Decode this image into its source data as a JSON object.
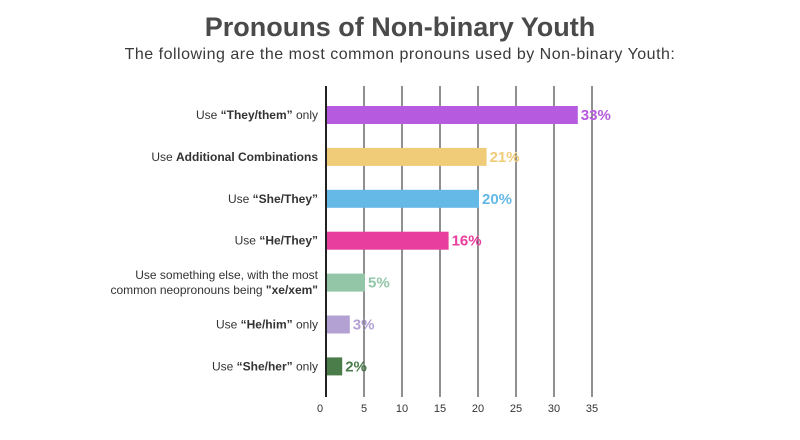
{
  "title": "Pronouns of Non-binary Youth",
  "subtitle": "The following are the most common pronouns used by Non-binary Youth:",
  "chart_data": {
    "type": "bar",
    "orientation": "horizontal",
    "title": "Pronouns of Non-binary Youth",
    "subtitle": "The following are the most common pronouns used by Non-binary Youth:",
    "categories": [
      "Use “They/them” only",
      "Use Additional Combinations",
      "Use “She/They”",
      "Use “He/They”",
      "Use something else, with the most common neopronouns being \"xe/xem\"",
      "Use “He/him” only",
      "Use “She/her” only"
    ],
    "category_text": [
      [
        [
          {
            "t": "Use ",
            "b": false
          },
          {
            "t": "“They/them”",
            "b": true
          },
          {
            "t": " only",
            "b": false
          }
        ]
      ],
      [
        [
          {
            "t": "Use ",
            "b": false
          },
          {
            "t": "Additional Combinations",
            "b": true
          }
        ]
      ],
      [
        [
          {
            "t": "Use ",
            "b": false
          },
          {
            "t": "“She/They”",
            "b": true
          }
        ]
      ],
      [
        [
          {
            "t": "Use ",
            "b": false
          },
          {
            "t": "“He/They”",
            "b": true
          }
        ]
      ],
      [
        [
          {
            "t": "Use something else, with the most",
            "b": false
          }
        ],
        [
          {
            "t": "common neopronouns being ",
            "b": false
          },
          {
            "t": "\"xe/xem\"",
            "b": true
          }
        ]
      ],
      [
        [
          {
            "t": "Use ",
            "b": false
          },
          {
            "t": "“He/him”",
            "b": true
          },
          {
            "t": " only",
            "b": false
          }
        ]
      ],
      [
        [
          {
            "t": "Use ",
            "b": false
          },
          {
            "t": "“She/her”",
            "b": true
          },
          {
            "t": " only",
            "b": false
          }
        ]
      ]
    ],
    "values": [
      33,
      21,
      20,
      16,
      5,
      3,
      2
    ],
    "value_labels": [
      "33%",
      "21%",
      "20%",
      "16%",
      "5%",
      "3%",
      "2%"
    ],
    "colors": [
      "#b65ae0",
      "#f0cc78",
      "#65b9e6",
      "#e83e9d",
      "#92c6a7",
      "#b3a1d3",
      "#4b7d4b"
    ],
    "xlim": [
      0,
      35
    ],
    "xticks": [
      0,
      5,
      10,
      15,
      20,
      25,
      30,
      35
    ],
    "grid": true
  }
}
